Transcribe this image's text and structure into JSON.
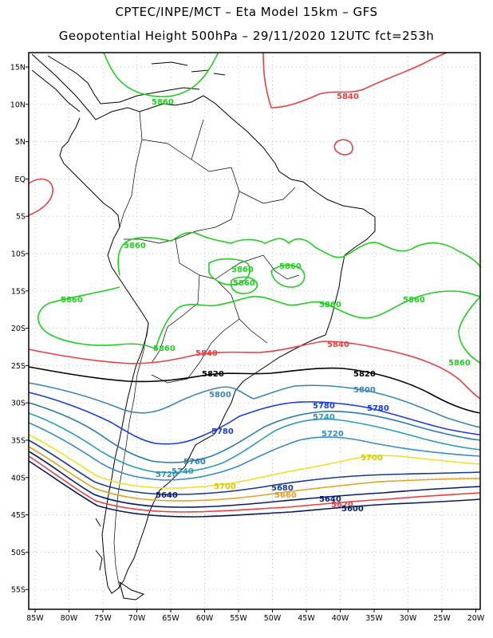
{
  "title_line1": "CPTEC/INPE/MCT –  Eta Model 15km – GFS",
  "title_line2": "Geopotential Height 500hPa – 29/11/2020 12UTC fct=253h",
  "lat_ticks": [
    "15N",
    "10N",
    "5N",
    "EQ",
    "5S",
    "10S",
    "15S",
    "20S",
    "25S",
    "30S",
    "35S",
    "40S",
    "45S",
    "50S",
    "55S"
  ],
  "lon_ticks": [
    "85W",
    "80W",
    "75W",
    "70W",
    "65W",
    "60W",
    "55W",
    "50W",
    "45W",
    "40W",
    "35W",
    "30W",
    "25W",
    "20W"
  ],
  "colors": {
    "c5860": "#22cc22",
    "c5840": "#e84040",
    "c5820": "#000000",
    "c5800": "#3a86b0",
    "c5780": "#1a3cd8",
    "c5760": "#2a7aaa",
    "c5740": "#2a9ab8",
    "c5720": "#3a8ac0",
    "c5700": "#f0e020",
    "c5680": "#1a3a88",
    "c5660": "#e0a020",
    "c5640": "#0a1a6a",
    "c5620": "#e84040",
    "c5600": "#0a1a5a"
  },
  "contour_labels": [
    {
      "id": "l5860a",
      "text": "5860",
      "color": "#22cc22"
    },
    {
      "id": "l5860b",
      "text": "5860",
      "color": "#22cc22"
    },
    {
      "id": "l5860c",
      "text": "5860",
      "color": "#22cc22"
    },
    {
      "id": "l5860d",
      "text": "5860",
      "color": "#22cc22"
    },
    {
      "id": "l5860e",
      "text": "5860",
      "color": "#22cc22"
    },
    {
      "id": "l5860f",
      "text": "5860",
      "color": "#22cc22"
    },
    {
      "id": "l5860g",
      "text": "5860",
      "color": "#22cc22"
    },
    {
      "id": "l5860h",
      "text": "5860",
      "color": "#22cc22"
    },
    {
      "id": "l5860i",
      "text": "5860",
      "color": "#22cc22"
    },
    {
      "id": "l5860j",
      "text": "5860",
      "color": "#22cc22"
    },
    {
      "id": "l5860k",
      "text": "5860",
      "color": "#22cc22"
    },
    {
      "id": "l5840a",
      "text": "5840",
      "color": "#e84040"
    },
    {
      "id": "l5840b",
      "text": "5840",
      "color": "#e84040"
    },
    {
      "id": "l5840c",
      "text": "5840",
      "color": "#e84040"
    },
    {
      "id": "l5820a",
      "text": "5820",
      "color": "#000000"
    },
    {
      "id": "l5820b",
      "text": "5820",
      "color": "#000000"
    },
    {
      "id": "l5800a",
      "text": "5800",
      "color": "#3a86b0"
    },
    {
      "id": "l5800b",
      "text": "5800",
      "color": "#3a86b0"
    },
    {
      "id": "l5780a",
      "text": "5780",
      "color": "#1a3cd8"
    },
    {
      "id": "l5780b",
      "text": "5780",
      "color": "#1a3cd8"
    },
    {
      "id": "l5780c",
      "text": "5780",
      "color": "#1a3cd8"
    },
    {
      "id": "l5760a",
      "text": "5760",
      "color": "#2a7aaa"
    },
    {
      "id": "l5740a",
      "text": "5740",
      "color": "#2a9ab8"
    },
    {
      "id": "l5740b",
      "text": "5740",
      "color": "#2a9ab8"
    },
    {
      "id": "l5720a",
      "text": "5720",
      "color": "#3a8ac0"
    },
    {
      "id": "l5720b",
      "text": "5720",
      "color": "#3a8ac0"
    },
    {
      "id": "l5700a",
      "text": "5700",
      "color": "#d8c800"
    },
    {
      "id": "l5700b",
      "text": "5700",
      "color": "#d8c800"
    },
    {
      "id": "l5680a",
      "text": "5680",
      "color": "#1a3a88"
    },
    {
      "id": "l5660a",
      "text": "5660",
      "color": "#e0a020"
    },
    {
      "id": "l5640a",
      "text": "5640",
      "color": "#0a1a6a"
    },
    {
      "id": "l5640b",
      "text": "5640",
      "color": "#0a1a6a"
    },
    {
      "id": "l5620a",
      "text": "5620",
      "color": "#e84040"
    },
    {
      "id": "l5600a",
      "text": "5600",
      "color": "#0a1a5a"
    }
  ]
}
